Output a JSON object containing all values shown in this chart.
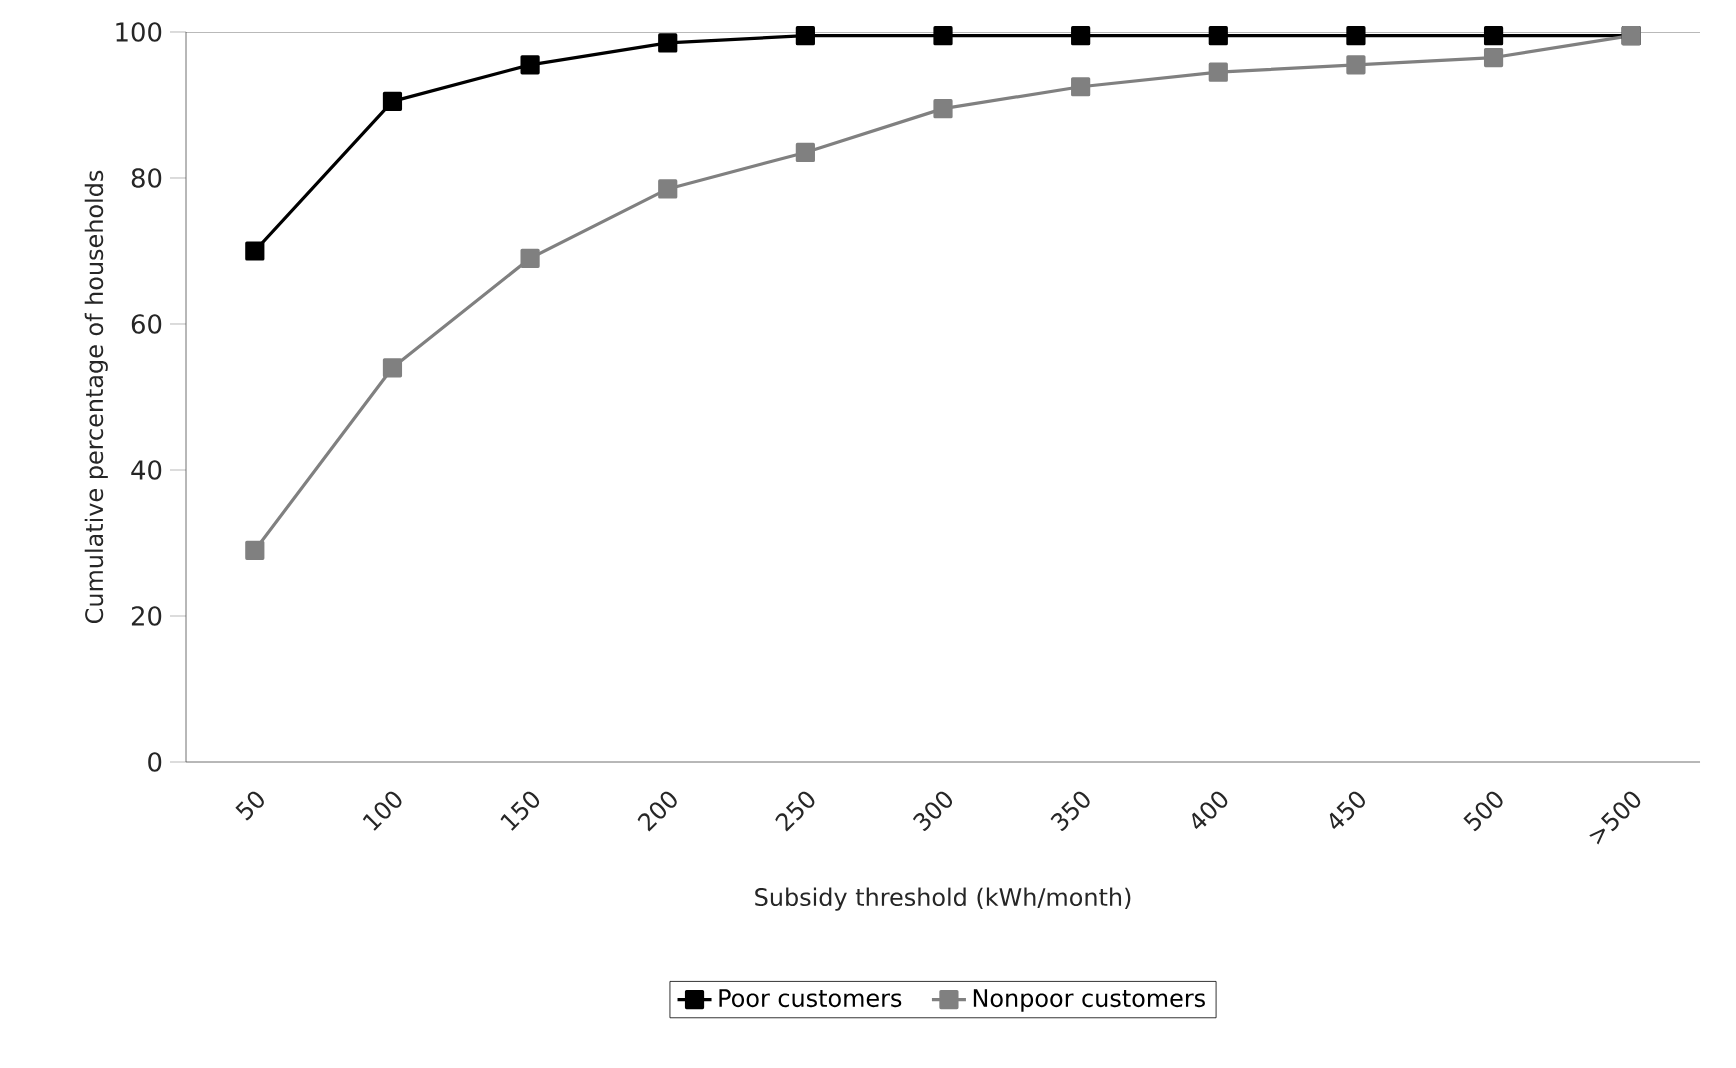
{
  "chart_data": {
    "type": "line",
    "xlabel": "Subsidy threshold (kWh/month)",
    "ylabel": "Cumulative percentage of households",
    "categories": [
      "50",
      "100",
      "150",
      "200",
      "250",
      "300",
      "350",
      "400",
      "450",
      "500",
      ">500"
    ],
    "series": [
      {
        "name": "Poor customers",
        "color": "#000000",
        "values": [
          70,
          90.5,
          95.5,
          98.5,
          99.5,
          99.5,
          99.5,
          99.5,
          99.5,
          99.5,
          99.5
        ]
      },
      {
        "name": "Nonpoor customers",
        "color": "#808080",
        "values": [
          29,
          54,
          69,
          78.5,
          83.5,
          89.5,
          92.5,
          94.5,
          95.5,
          96.5,
          99.5
        ]
      }
    ],
    "ylim": [
      0,
      100
    ],
    "yticks": [
      0,
      20,
      40,
      60,
      80,
      100
    ],
    "grid": false,
    "legend": "bottom",
    "marker": "square",
    "line_style": "solid"
  }
}
